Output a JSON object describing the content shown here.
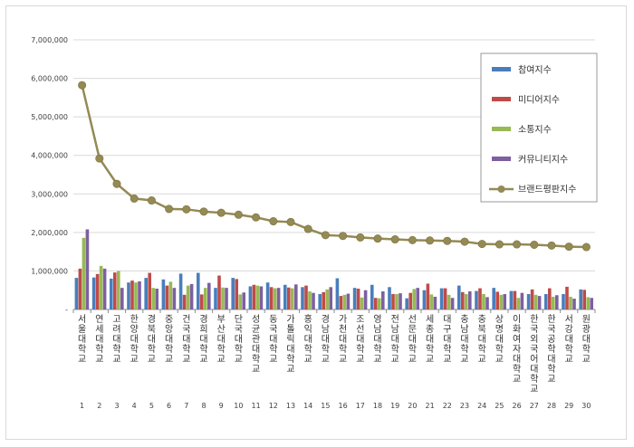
{
  "chart_data": {
    "type": "bar",
    "combo_line_series": "브랜드평판지수",
    "categories": [
      "서울대학교",
      "연세대학교",
      "고려대학교",
      "한양대학교",
      "경북대학교",
      "중앙대학교",
      "건국대학교",
      "경희대학교",
      "부산대학교",
      "단국대학교",
      "성균관대학교",
      "동국대학교",
      "가톨릭대학교",
      "홍익대학교",
      "경남대학교",
      "가천대학교",
      "조선대학교",
      "영남대학교",
      "전남대학교",
      "선문대학교",
      "세종대학교",
      "대구대학교",
      "충남대학교",
      "충북대학교",
      "상명대학교",
      "이화여자대학교",
      "한국외국어대학교",
      "한국공학대학교",
      "서강대학교",
      "원광대학교"
    ],
    "ranks": [
      "1",
      "2",
      "3",
      "4",
      "5",
      "6",
      "7",
      "8",
      "9",
      "10",
      "11",
      "12",
      "13",
      "14",
      "15",
      "16",
      "17",
      "18",
      "19",
      "20",
      "21",
      "22",
      "23",
      "24",
      "25",
      "26",
      "27",
      "28",
      "29",
      "30"
    ],
    "series": [
      {
        "name": "참여지수",
        "color": "#4a7ebb",
        "values": [
          820000,
          830000,
          800000,
          700000,
          820000,
          780000,
          930000,
          950000,
          560000,
          820000,
          600000,
          700000,
          640000,
          580000,
          400000,
          810000,
          560000,
          640000,
          580000,
          290000,
          500000,
          550000,
          620000,
          480000,
          560000,
          480000,
          400000,
          400000,
          400000,
          520000
        ]
      },
      {
        "name": "미디어지수",
        "color": "#be4b48",
        "values": [
          1060000,
          920000,
          960000,
          750000,
          950000,
          620000,
          380000,
          390000,
          880000,
          790000,
          640000,
          580000,
          570000,
          620000,
          450000,
          350000,
          540000,
          300000,
          400000,
          430000,
          670000,
          550000,
          450000,
          550000,
          460000,
          480000,
          520000,
          550000,
          590000,
          510000
        ]
      },
      {
        "name": "소통지수",
        "color": "#98b954",
        "values": [
          1860000,
          1130000,
          1000000,
          700000,
          560000,
          720000,
          620000,
          560000,
          570000,
          390000,
          620000,
          550000,
          550000,
          470000,
          520000,
          380000,
          310000,
          290000,
          400000,
          530000,
          390000,
          380000,
          400000,
          400000,
          380000,
          300000,
          380000,
          330000,
          330000,
          320000
        ]
      },
      {
        "name": "커뮤니티지수",
        "color": "#7d60a0",
        "values": [
          2080000,
          1060000,
          560000,
          730000,
          540000,
          560000,
          660000,
          690000,
          560000,
          440000,
          600000,
          560000,
          650000,
          430000,
          580000,
          410000,
          500000,
          470000,
          420000,
          560000,
          330000,
          300000,
          470000,
          320000,
          400000,
          430000,
          350000,
          370000,
          280000,
          300000
        ]
      }
    ],
    "line": {
      "name": "브랜드평판지수",
      "color": "#948a54",
      "values": [
        5820000,
        3920000,
        3260000,
        2880000,
        2830000,
        2610000,
        2600000,
        2540000,
        2510000,
        2460000,
        2390000,
        2290000,
        2270000,
        2090000,
        1930000,
        1910000,
        1870000,
        1840000,
        1820000,
        1800000,
        1790000,
        1780000,
        1760000,
        1700000,
        1690000,
        1690000,
        1680000,
        1660000,
        1630000,
        1620000
      ]
    },
    "y_axis": {
      "min": 0,
      "max": 7000000,
      "step": 1000000,
      "ticks": [
        "-",
        "1,000,000",
        "2,000,000",
        "3,000,000",
        "4,000,000",
        "5,000,000",
        "6,000,000",
        "7,000,000"
      ]
    },
    "grid": true,
    "legend_position": "top-right",
    "legend": [
      "참여지수",
      "미디어지수",
      "소통지수",
      "커뮤니티지수",
      "브랜드평판지수"
    ]
  }
}
